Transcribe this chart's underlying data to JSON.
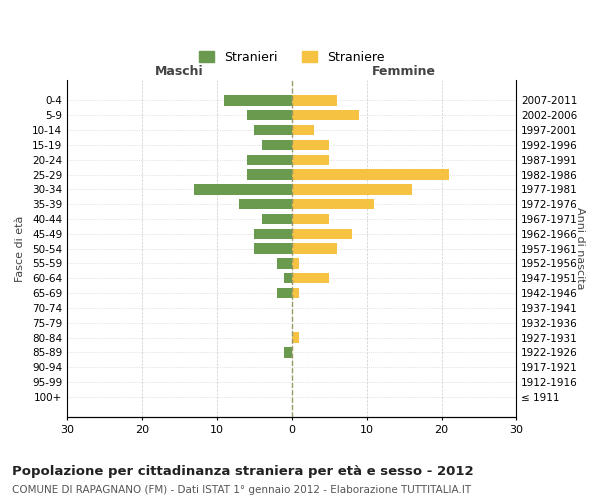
{
  "age_groups": [
    "100+",
    "95-99",
    "90-94",
    "85-89",
    "80-84",
    "75-79",
    "70-74",
    "65-69",
    "60-64",
    "55-59",
    "50-54",
    "45-49",
    "40-44",
    "35-39",
    "30-34",
    "25-29",
    "20-24",
    "15-19",
    "10-14",
    "5-9",
    "0-4"
  ],
  "birth_years": [
    "≤ 1911",
    "1912-1916",
    "1917-1921",
    "1922-1926",
    "1927-1931",
    "1932-1936",
    "1937-1941",
    "1942-1946",
    "1947-1951",
    "1952-1956",
    "1957-1961",
    "1962-1966",
    "1967-1971",
    "1972-1976",
    "1977-1981",
    "1982-1986",
    "1987-1991",
    "1992-1996",
    "1997-2001",
    "2002-2006",
    "2007-2011"
  ],
  "maschi": [
    0,
    0,
    0,
    1,
    0,
    0,
    0,
    2,
    1,
    2,
    5,
    5,
    4,
    7,
    13,
    6,
    6,
    4,
    5,
    6,
    9
  ],
  "femmine": [
    0,
    0,
    0,
    0,
    1,
    0,
    0,
    1,
    5,
    1,
    6,
    8,
    5,
    11,
    16,
    21,
    5,
    5,
    3,
    9,
    6
  ],
  "color_maschi": "#6a9a4e",
  "color_femmine": "#f5c242",
  "background_color": "#ffffff",
  "grid_color": "#cccccc",
  "center_line_color": "#999966",
  "title": "Popolazione per cittadinanza straniera per età e sesso - 2012",
  "subtitle": "COMUNE DI RAPAGNANO (FM) - Dati ISTAT 1° gennaio 2012 - Elaborazione TUTTITALIA.IT",
  "xlabel_left": "Maschi",
  "xlabel_right": "Femmine",
  "ylabel_left": "Fasce di età",
  "ylabel_right": "Anni di nascita",
  "legend_maschi": "Stranieri",
  "legend_femmine": "Straniere",
  "xlim": 30,
  "xticks": [
    30,
    20,
    10,
    0,
    10,
    20,
    30
  ]
}
